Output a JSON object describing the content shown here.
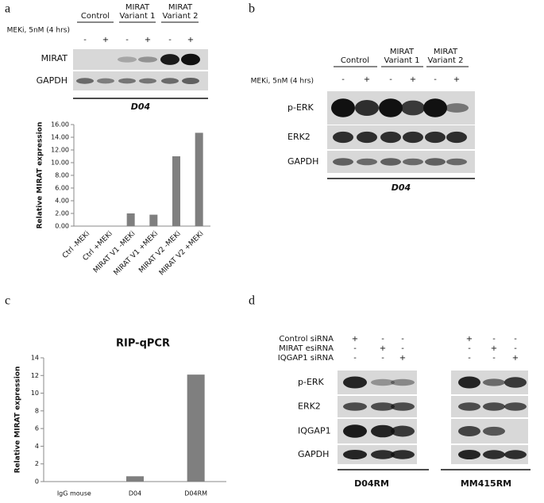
{
  "blot_a": {
    "letter": "a",
    "groups": [
      [
        "Control"
      ],
      [
        "MIRAT",
        "Variant 1"
      ],
      [
        "MIRAT",
        "Variant 2"
      ]
    ],
    "treatment": "MEKi, 5nM (4 hrs)",
    "signs": [
      "-",
      "+",
      "-",
      "+",
      "-",
      "+"
    ],
    "rows": [
      "MIRAT",
      "GAPDH"
    ],
    "cell_line": "D04"
  },
  "blot_b": {
    "letter": "b",
    "groups": [
      [
        "Control"
      ],
      [
        "MIRAT",
        "Variant 1"
      ],
      [
        "MIRAT",
        "Variant 2"
      ]
    ],
    "treatment": "MEKi, 5nM (4 hrs)",
    "signs": [
      "-",
      "+",
      "-",
      "+",
      "-",
      "+"
    ],
    "rows": [
      "p-ERK",
      "ERK2",
      "GAPDH"
    ],
    "cell_line": "D04"
  },
  "letter_c": "c",
  "blot_d": {
    "letter": "d",
    "conditions": [
      {
        "label": "Control siRNA",
        "signs": [
          "+",
          "-",
          "-"
        ]
      },
      {
        "label": "MIRAT esiRNA",
        "signs": [
          "-",
          "+",
          "-"
        ]
      },
      {
        "label": "IQGAP1 siRNA",
        "signs": [
          "-",
          "-",
          "+"
        ]
      }
    ],
    "rows": [
      "p-ERK",
      "ERK2",
      "IQGAP1",
      "GAPDH"
    ],
    "cell_lines": [
      "D04RM",
      "MM415RM"
    ]
  },
  "chart_data": [
    {
      "type": "bar",
      "ylabel": "Relative MIRAT expression",
      "categories": [
        "Ctrl -MEKi",
        "Ctrl +MEKi",
        "MIRAT V1 -MEKi",
        "MIRAT V1 +MEKi",
        "MIRAT V2 -MEKi",
        "MIRAT V2 +MEKi"
      ],
      "values": [
        0,
        0,
        2.0,
        1.8,
        11.0,
        14.7
      ],
      "color": "#7f7f7f",
      "ylim": [
        0,
        16
      ],
      "yticks": [
        {
          "value": 0,
          "label": "0.00"
        },
        {
          "value": 2,
          "label": "2.00"
        },
        {
          "value": 4,
          "label": "4.00"
        },
        {
          "value": 6,
          "label": "6.00"
        },
        {
          "value": 8,
          "label": "8.00"
        },
        {
          "value": 10,
          "label": "10.00"
        },
        {
          "value": 12,
          "label": "12.00"
        },
        {
          "value": 14,
          "label": "14.00"
        },
        {
          "value": 16,
          "label": "16.00"
        }
      ]
    },
    {
      "type": "bar",
      "title": "RIP-qPCR",
      "ylabel": "Relative MIRAT expression",
      "categories": [
        "IgG mouse",
        "D04",
        "D04RM"
      ],
      "values": [
        0,
        0.6,
        12.1
      ],
      "color": "#7f7f7f",
      "ylim": [
        0,
        14
      ],
      "yticks": [
        0,
        2,
        4,
        6,
        8,
        10,
        12,
        14
      ]
    }
  ]
}
